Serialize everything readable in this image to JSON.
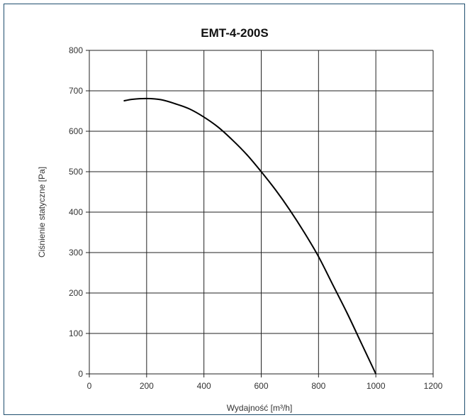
{
  "chart_data": {
    "type": "line",
    "title": "EMT-4-200S",
    "xlabel": "Wydajność [m³/h]",
    "ylabel": "Ciśnienie statyczne [Pa]",
    "xlim": [
      0,
      1200
    ],
    "ylim": [
      0,
      800
    ],
    "xticks": [
      0,
      200,
      400,
      600,
      800,
      1000,
      1200
    ],
    "yticks": [
      0,
      100,
      200,
      300,
      400,
      500,
      600,
      700,
      800
    ],
    "grid": true,
    "series": [
      {
        "x": [
          120,
          150,
          200,
          250,
          300,
          350,
          400,
          450,
          500,
          550,
          600,
          650,
          700,
          750,
          800,
          850,
          900,
          950,
          1000
        ],
        "y": [
          675,
          679,
          681,
          678,
          668,
          655,
          635,
          610,
          578,
          542,
          500,
          455,
          405,
          350,
          290,
          220,
          150,
          75,
          0
        ]
      }
    ]
  }
}
